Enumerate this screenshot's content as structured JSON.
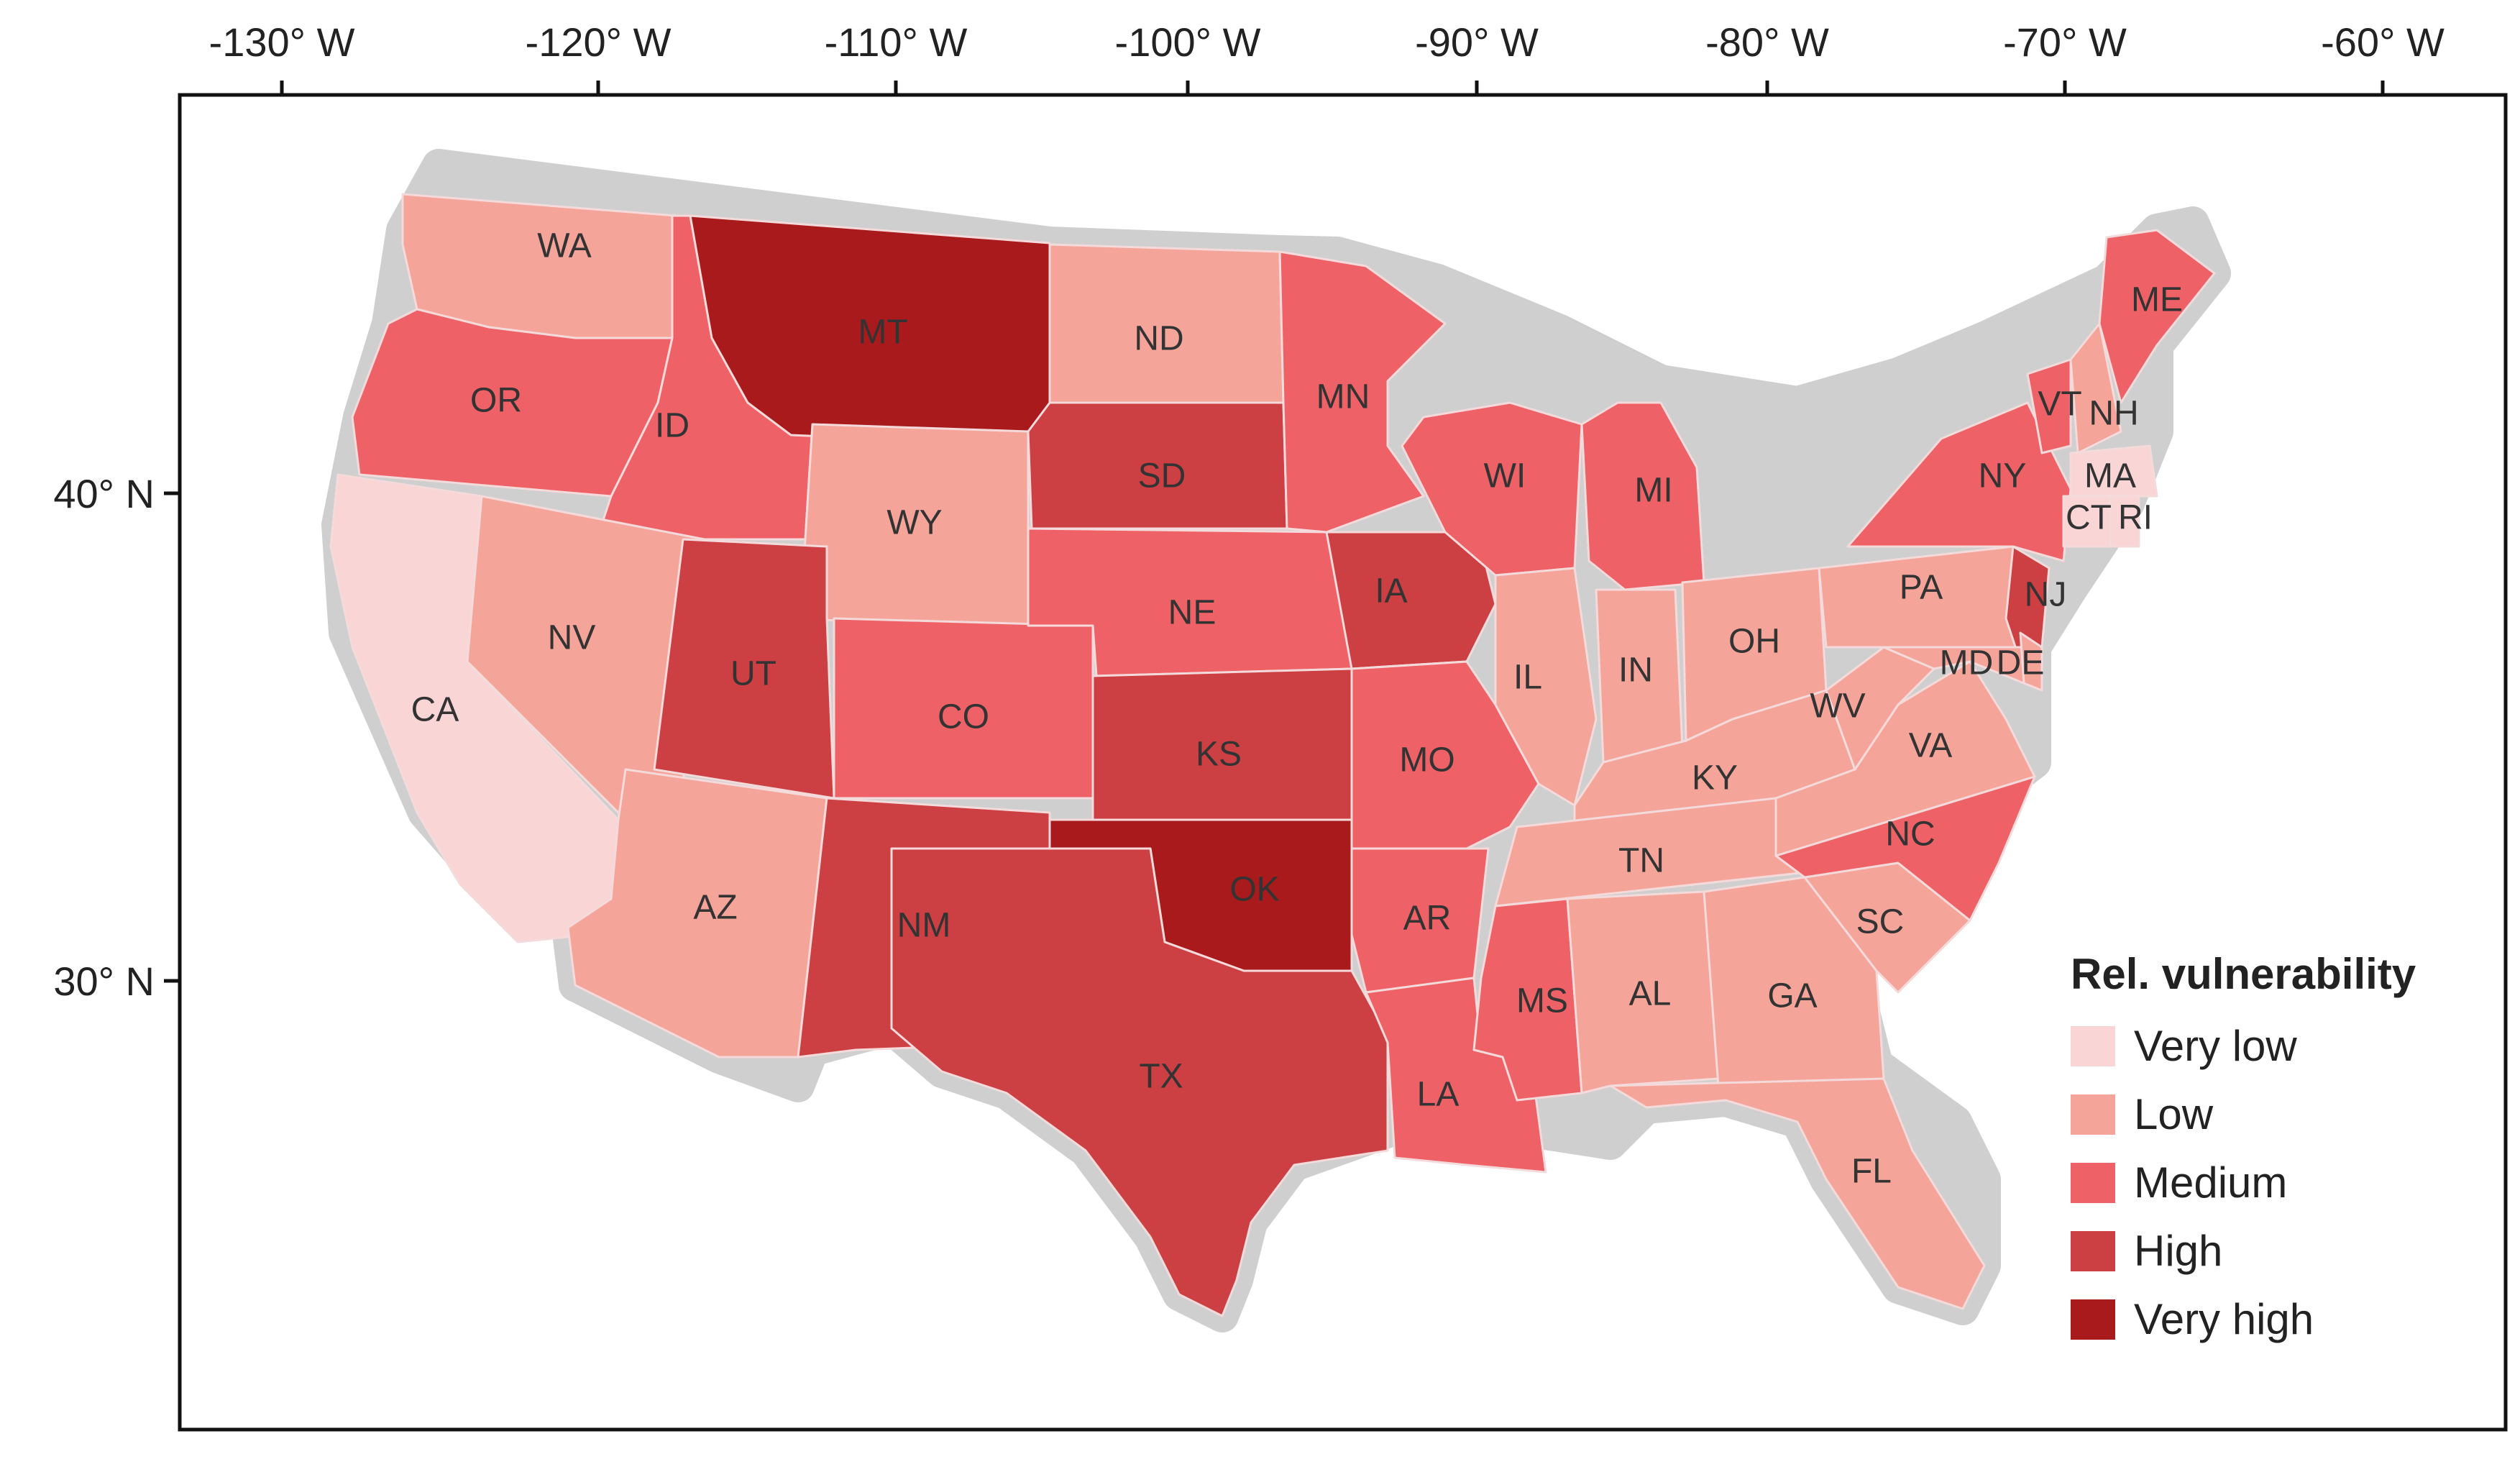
{
  "map": {
    "longitude_ticks": [
      "-130° W",
      "-120° W",
      "-110° W",
      "-100° W",
      "-90° W",
      "-80° W",
      "-70° W",
      "-60° W"
    ],
    "latitude_ticks": [
      "40° N",
      "30° N"
    ]
  },
  "legend": {
    "title": "Rel. vulnerability",
    "items": [
      {
        "label": "Very low",
        "color": "#f9d5d6"
      },
      {
        "label": "Low",
        "color": "#f5a49a"
      },
      {
        "label": "Medium",
        "color": "#ee6166"
      },
      {
        "label": "High",
        "color": "#cc3f43"
      },
      {
        "label": "Very high",
        "color": "#a81a1c"
      }
    ]
  },
  "states": [
    {
      "abbr": "WA",
      "level": "Low"
    },
    {
      "abbr": "OR",
      "level": "Medium"
    },
    {
      "abbr": "CA",
      "level": "Very low"
    },
    {
      "abbr": "ID",
      "level": "Medium"
    },
    {
      "abbr": "NV",
      "level": "Low"
    },
    {
      "abbr": "MT",
      "level": "Very high"
    },
    {
      "abbr": "WY",
      "level": "Low"
    },
    {
      "abbr": "UT",
      "level": "High"
    },
    {
      "abbr": "AZ",
      "level": "Low"
    },
    {
      "abbr": "CO",
      "level": "Medium"
    },
    {
      "abbr": "NM",
      "level": "High"
    },
    {
      "abbr": "ND",
      "level": "Low"
    },
    {
      "abbr": "SD",
      "level": "High"
    },
    {
      "abbr": "NE",
      "level": "Medium"
    },
    {
      "abbr": "KS",
      "level": "High"
    },
    {
      "abbr": "OK",
      "level": "Very high"
    },
    {
      "abbr": "TX",
      "level": "High"
    },
    {
      "abbr": "MN",
      "level": "Medium"
    },
    {
      "abbr": "IA",
      "level": "High"
    },
    {
      "abbr": "MO",
      "level": "Medium"
    },
    {
      "abbr": "AR",
      "level": "Medium"
    },
    {
      "abbr": "LA",
      "level": "Medium"
    },
    {
      "abbr": "WI",
      "level": "Medium"
    },
    {
      "abbr": "IL",
      "level": "Low"
    },
    {
      "abbr": "MI",
      "level": "Medium"
    },
    {
      "abbr": "IN",
      "level": "Low"
    },
    {
      "abbr": "OH",
      "level": "Low"
    },
    {
      "abbr": "KY",
      "level": "Low"
    },
    {
      "abbr": "TN",
      "level": "Low"
    },
    {
      "abbr": "MS",
      "level": "Medium"
    },
    {
      "abbr": "AL",
      "level": "Low"
    },
    {
      "abbr": "GA",
      "level": "Low"
    },
    {
      "abbr": "FL",
      "level": "Low"
    },
    {
      "abbr": "SC",
      "level": "Low"
    },
    {
      "abbr": "NC",
      "level": "Medium"
    },
    {
      "abbr": "VA",
      "level": "Low"
    },
    {
      "abbr": "WV",
      "level": "Low"
    },
    {
      "abbr": "PA",
      "level": "Low"
    },
    {
      "abbr": "NY",
      "level": "Medium"
    },
    {
      "abbr": "NJ",
      "level": "High"
    },
    {
      "abbr": "MD",
      "level": "Low"
    },
    {
      "abbr": "DE",
      "level": "Low"
    },
    {
      "abbr": "VT",
      "level": "Medium"
    },
    {
      "abbr": "NH",
      "level": "Low"
    },
    {
      "abbr": "MA",
      "level": "Very low"
    },
    {
      "abbr": "CT",
      "level": "Very low"
    },
    {
      "abbr": "RI",
      "level": "Very low"
    },
    {
      "abbr": "ME",
      "level": "Medium"
    }
  ]
}
